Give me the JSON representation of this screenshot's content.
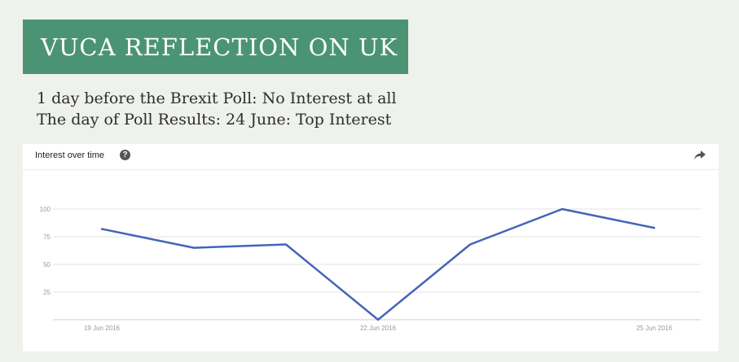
{
  "banner": {
    "title": "VUCA REFLECTION ON UK"
  },
  "subtitle": {
    "line1": "1 day before the Brexit Poll: No Interest at all",
    "line2": "The day of Poll Results: 24 June: Top Interest"
  },
  "widget": {
    "title": "Interest over time",
    "help_icon": "question-circle-icon",
    "share_icon": "share-arrow-icon"
  },
  "colors": {
    "banner": "#4a9474",
    "line": "#4464b8",
    "grid": "#e3e3e3",
    "tick_text": "#9a9a9a"
  },
  "chart_data": {
    "type": "line",
    "title": "Interest over time",
    "x": [
      "19 Jun 2016",
      "",
      "",
      "22 Jun 2016",
      "",
      "",
      "25 Jun 2016"
    ],
    "x_tick_labels": [
      "19 Jun 2016",
      "22 Jun 2016",
      "25 Jun 2016"
    ],
    "y_ticks": [
      "100",
      "75",
      "50",
      "25"
    ],
    "ylim": [
      0,
      100
    ],
    "grid": true,
    "series": [
      {
        "values": [
          82,
          65,
          68,
          0,
          68,
          100,
          83
        ]
      }
    ]
  }
}
